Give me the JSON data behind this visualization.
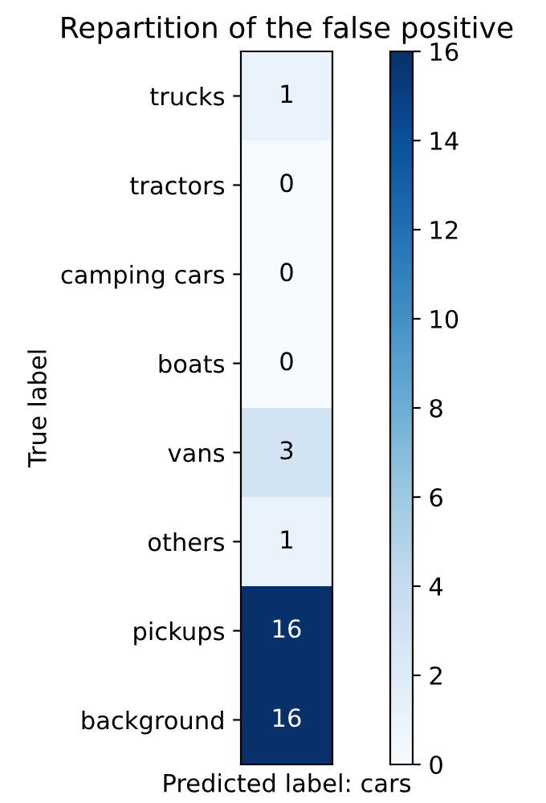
{
  "chart_data": {
    "type": "heatmap",
    "title": "Repartition of the false positive",
    "xlabel": "Predicted label: cars",
    "ylabel": "True label",
    "categories": [
      null
    ],
    "y_categories": [
      "trucks",
      "tractors",
      "camping cars",
      "boats",
      "vans",
      "others",
      "pickups",
      "background"
    ],
    "cells": [
      [
        1
      ],
      [
        0
      ],
      [
        0
      ],
      [
        0
      ],
      [
        3
      ],
      [
        1
      ],
      [
        16
      ],
      [
        16
      ]
    ],
    "clim": [
      0,
      16
    ],
    "cticks": [
      0,
      2,
      4,
      6,
      8,
      10,
      12,
      14,
      16
    ],
    "data_labels": true,
    "tick_labels": "y",
    "grid": false
  }
}
